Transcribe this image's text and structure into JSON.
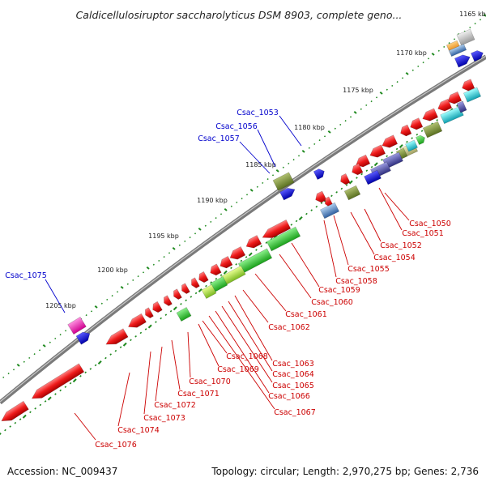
{
  "title": "Caldicellulosiruptor saccharolyticus DSM 8903, complete geno...",
  "footer": {
    "accession": "Accession: NC_009437",
    "summary": "Topology: circular; Length: 2,970,275 bp; Genes: 2,736"
  },
  "colors": {
    "backbone": "#8a8a8a",
    "tick": "#1f8a1f",
    "label_red": "#cc0000",
    "label_blue": "#0000cc"
  },
  "scale_labels": [
    "1165 kbp",
    "1170 kbp",
    "1175 kbp",
    "1180 kbp",
    "1185 kbp",
    "1190 kbp",
    "1195 kbp",
    "1200 kbp",
    "1205 kbp"
  ],
  "labels_blue": [
    "Csac_1053",
    "Csac_1056",
    "Csac_1057",
    "Csac_1075"
  ],
  "labels_red": [
    "Csac_1050",
    "Csac_1051",
    "Csac_1052",
    "Csac_1054",
    "Csac_1055",
    "Csac_1058",
    "Csac_1059",
    "Csac_1060",
    "Csac_1061",
    "Csac_1062",
    "Csac_1063",
    "Csac_1064",
    "Csac_1065",
    "Csac_1066",
    "Csac_1067",
    "Csac_1068",
    "Csac_1069",
    "Csac_1070",
    "Csac_1071",
    "Csac_1072",
    "Csac_1073",
    "Csac_1074",
    "Csac_1076"
  ]
}
